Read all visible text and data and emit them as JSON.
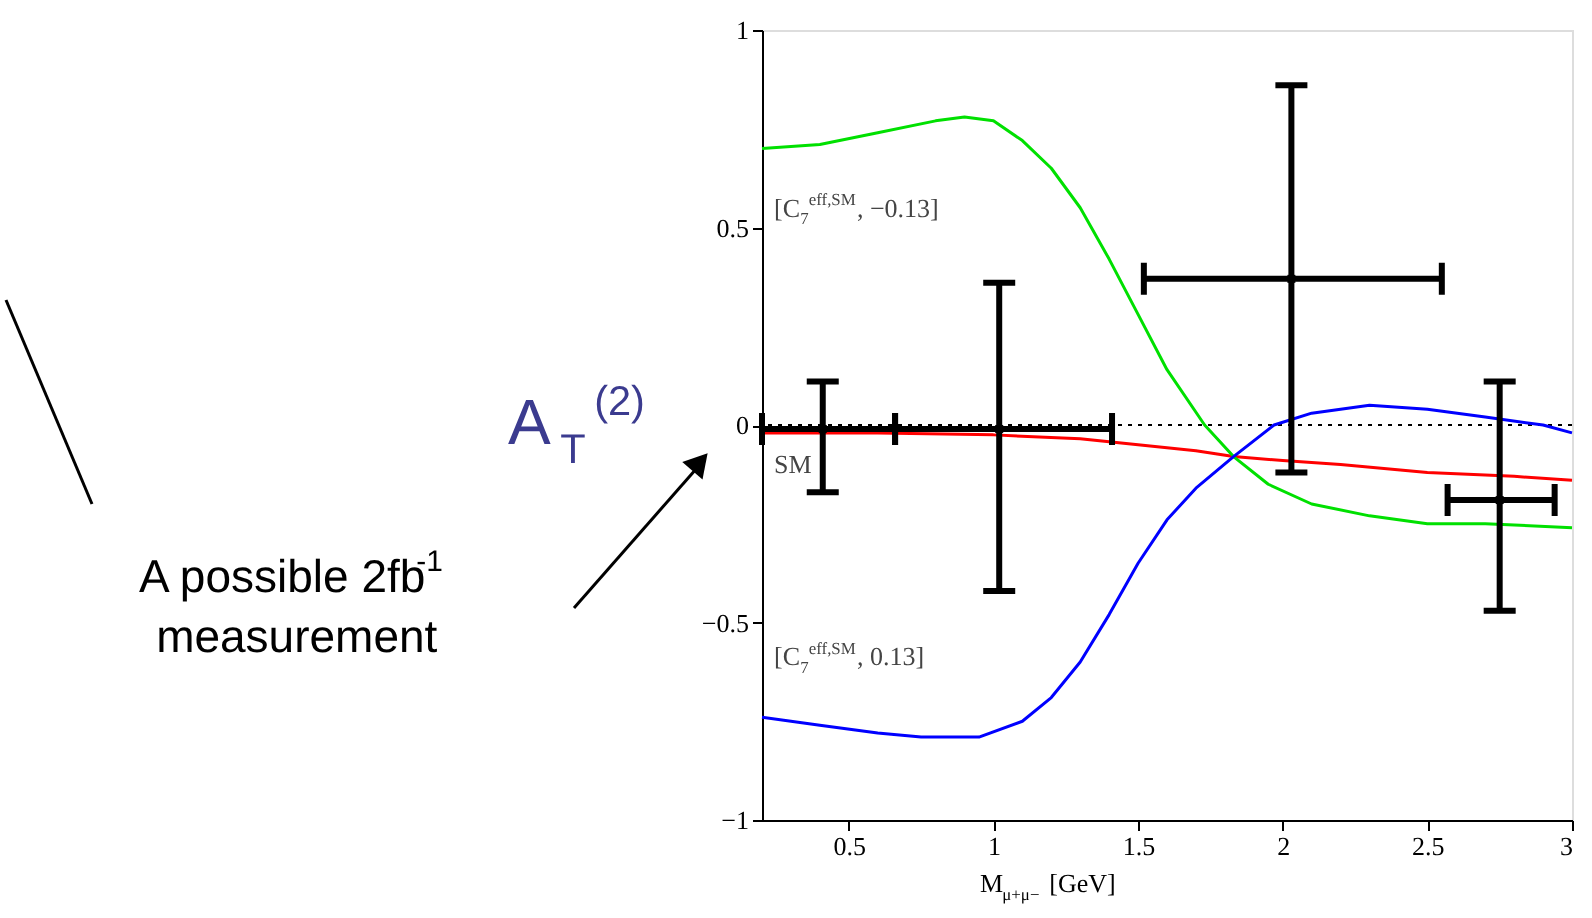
{
  "chart_data": {
    "type": "line",
    "xlabel": "M$_{μ+μ−}$ [GeV]",
    "ylabel": "A$_{T}$$^{(2)}$",
    "xlim": [
      0.2,
      3
    ],
    "xticks": [
      0.5,
      1,
      1.5,
      2,
      2.5,
      3
    ],
    "ylim": [
      -1,
      1
    ],
    "yticks": [
      {
        "value": -1,
        "label": "−1"
      },
      {
        "value": -0.5,
        "label": "−0.5"
      },
      0,
      0.5,
      1
    ],
    "grid": false,
    "ref_lines": [
      {
        "axis": "y",
        "value": 0,
        "color": "#000000",
        "line_style": "dotted"
      }
    ],
    "annotations": [
      "A possible 2fb$^{-1}$\nmeasurement"
    ],
    "series": [
      {
        "name": "SM",
        "color": "#ff0000",
        "x": [
          0.2,
          0.6,
          1.0,
          1.3,
          1.5,
          1.7,
          1.83,
          2.0,
          2.2,
          2.5,
          2.8,
          3.0
        ],
        "values": [
          -0.02,
          -0.02,
          -0.025,
          -0.035,
          -0.05,
          -0.065,
          -0.08,
          -0.09,
          -0.1,
          -0.12,
          -0.13,
          -0.14
        ]
      },
      {
        "name": "[C$_{7}$$^{eff,SM}$, −0.13]",
        "color": "#00e000",
        "x": [
          0.2,
          0.4,
          0.6,
          0.8,
          0.9,
          1.0,
          1.1,
          1.2,
          1.3,
          1.4,
          1.5,
          1.6,
          1.73,
          1.83,
          1.95,
          2.1,
          2.3,
          2.5,
          2.7,
          3.0
        ],
        "values": [
          0.7,
          0.71,
          0.74,
          0.77,
          0.78,
          0.77,
          0.72,
          0.65,
          0.55,
          0.42,
          0.28,
          0.14,
          0.0,
          -0.08,
          -0.15,
          -0.2,
          -0.23,
          -0.25,
          -0.25,
          -0.26
        ]
      },
      {
        "name": "[C$_{7}$$^{eff,SM}$, 0.13]",
        "color": "#0000ff",
        "x": [
          0.2,
          0.4,
          0.6,
          0.75,
          0.95,
          1.1,
          1.2,
          1.3,
          1.4,
          1.5,
          1.6,
          1.7,
          1.83,
          1.97,
          2.1,
          2.3,
          2.5,
          2.7,
          2.9,
          3.0
        ],
        "values": [
          -0.74,
          -0.76,
          -0.78,
          -0.79,
          -0.79,
          -0.75,
          -0.69,
          -0.6,
          -0.48,
          -0.35,
          -0.24,
          -0.16,
          -0.08,
          0.0,
          0.03,
          0.05,
          0.04,
          0.02,
          0.0,
          -0.02
        ]
      },
      {
        "type": "scatter",
        "marker": "square",
        "color": "#000000",
        "x": [
          0.41,
          1.02,
          2.03,
          2.75
        ],
        "values": [
          -0.01,
          -0.01,
          0.37,
          -0.19
        ],
        "errors": [
          [
            -0.17,
            0.11
          ],
          [
            -0.42,
            0.36
          ],
          [
            -0.12,
            0.86
          ],
          [
            -0.47,
            0.11
          ]
        ],
        "xerrors": [
          [
            0.2,
            0.66
          ],
          [
            0.66,
            1.41
          ],
          [
            1.52,
            2.55
          ],
          [
            2.57,
            2.94
          ]
        ]
      }
    ]
  }
}
